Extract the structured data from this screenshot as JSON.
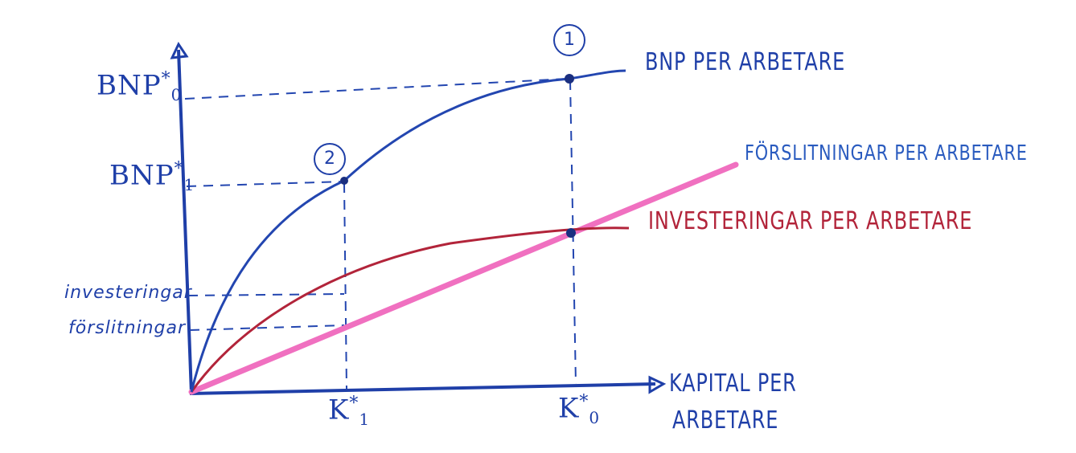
{
  "diagram": {
    "y_axis_labels": {
      "bnp0": {
        "base": "BNP",
        "sup": "*",
        "sub": "0"
      },
      "bnp1": {
        "base": "BNP",
        "sup": "*",
        "sub": "1"
      },
      "investeringar": "investeringar",
      "forslitningar": "förslitningar"
    },
    "x_axis_labels": {
      "k1": {
        "base": "K",
        "sup": "*",
        "sub": "1"
      },
      "k0": {
        "base": "K",
        "sup": "*",
        "sub": "0"
      }
    },
    "x_axis_title_line1": "KAPITAL PER",
    "x_axis_title_line2": "ARBETARE",
    "curves": {
      "bnp": "BNP PER ARBETARE",
      "forslitningar": "FÖRSLITNINGAR PER ARBETARE",
      "investeringar": "INVESTERINGAR PER ARBETARE"
    },
    "points": {
      "one": "1",
      "two": "2"
    },
    "colors": {
      "axis": "#1f3fa8",
      "bnp": "#2346b0",
      "forslitningar": "#f070c0",
      "investeringar": "#b2243a"
    }
  }
}
